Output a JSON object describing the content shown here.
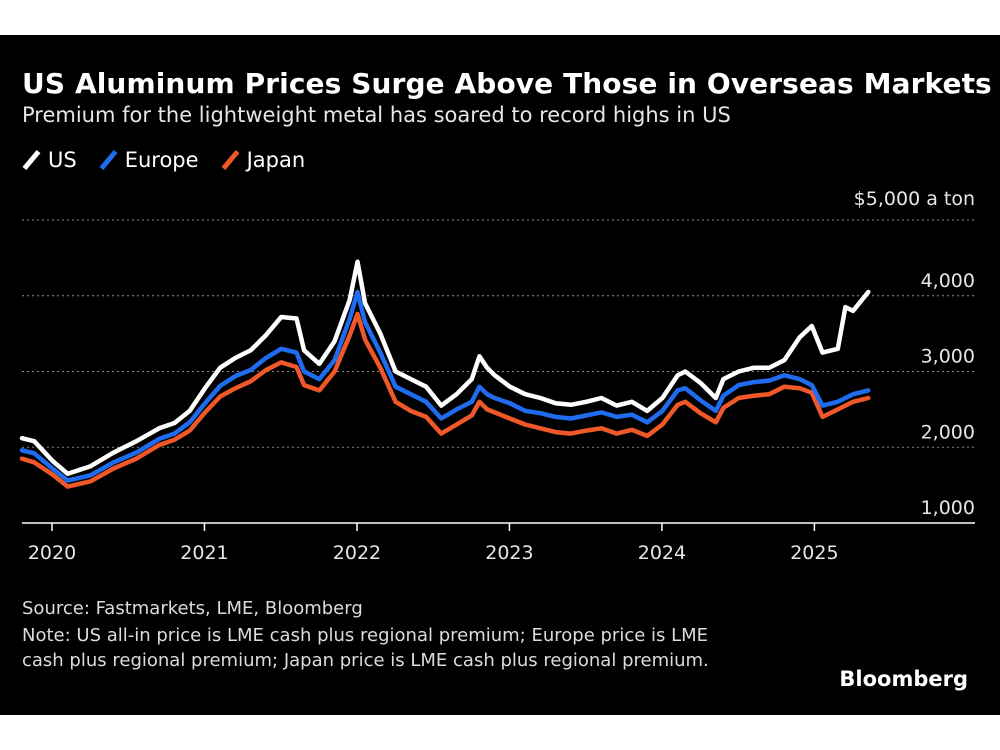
{
  "title": "US Aluminum Prices Surge Above Those in Overseas Markets",
  "subtitle": "Premium for the lightweight metal has soared to record highs in US",
  "legend": [
    {
      "label": "US",
      "color": "#ffffff"
    },
    {
      "label": "Europe",
      "color": "#1f6cf0"
    },
    {
      "label": "Japan",
      "color": "#f0582a"
    }
  ],
  "source": "Source: Fastmarkets, LME, Bloomberg",
  "note": "Note: US all-in price is LME cash plus regional premium; Europe price is LME cash plus regional premium; Japan price is LME cash plus regional premium.",
  "brand": "Bloomberg",
  "chart_data": {
    "type": "line",
    "unit_label": "$5,000 a ton",
    "ylim": [
      1000,
      5000
    ],
    "yticks": [
      1000,
      2000,
      3000,
      4000
    ],
    "ytick_labels": [
      "1,000",
      "2,000",
      "3,000",
      "4,000"
    ],
    "xlim": [
      2020.0,
      2026.25
    ],
    "xticks": [
      2020,
      2021,
      2022,
      2023,
      2024,
      2025
    ],
    "xtick_labels": [
      "2020",
      "2021",
      "2022",
      "2023",
      "2024",
      "2025"
    ],
    "grid": true,
    "legend_position": "top-left",
    "series": [
      {
        "name": "US",
        "color": "#ffffff",
        "x": [
          2020.0,
          2020.08,
          2020.2,
          2020.3,
          2020.45,
          2020.6,
          2020.75,
          2020.9,
          2021.0,
          2021.1,
          2021.2,
          2021.3,
          2021.4,
          2021.5,
          2021.6,
          2021.7,
          2021.8,
          2021.85,
          2021.95,
          2022.05,
          2022.15,
          2022.2,
          2022.25,
          2022.35,
          2022.45,
          2022.55,
          2022.65,
          2022.75,
          2022.85,
          2022.95,
          2023.0,
          2023.05,
          2023.1,
          2023.2,
          2023.3,
          2023.4,
          2023.5,
          2023.6,
          2023.7,
          2023.8,
          2023.9,
          2024.0,
          2024.1,
          2024.2,
          2024.3,
          2024.35,
          2024.45,
          2024.55,
          2024.6,
          2024.7,
          2024.8,
          2024.9,
          2025.0,
          2025.1,
          2025.18,
          2025.25,
          2025.35,
          2025.4,
          2025.45,
          2025.55
        ],
        "y": [
          2120,
          2080,
          1820,
          1650,
          1750,
          1930,
          2080,
          2250,
          2320,
          2480,
          2780,
          3050,
          3180,
          3280,
          3480,
          3720,
          3700,
          3280,
          3100,
          3400,
          3950,
          4450,
          3900,
          3500,
          3000,
          2900,
          2800,
          2550,
          2700,
          2900,
          3200,
          3050,
          2950,
          2800,
          2700,
          2650,
          2580,
          2560,
          2600,
          2650,
          2550,
          2600,
          2480,
          2650,
          2950,
          3000,
          2850,
          2650,
          2900,
          3000,
          3050,
          3050,
          3150,
          3450,
          3600,
          3250,
          3300,
          3850,
          3800,
          4050
        ]
      },
      {
        "name": "Europe",
        "color": "#1f6cf0",
        "x": [
          2020.0,
          2020.08,
          2020.2,
          2020.3,
          2020.45,
          2020.6,
          2020.75,
          2020.9,
          2021.0,
          2021.1,
          2021.2,
          2021.3,
          2021.4,
          2021.5,
          2021.6,
          2021.7,
          2021.8,
          2021.85,
          2021.95,
          2022.05,
          2022.15,
          2022.2,
          2022.25,
          2022.35,
          2022.45,
          2022.55,
          2022.65,
          2022.75,
          2022.85,
          2022.95,
          2023.0,
          2023.05,
          2023.1,
          2023.2,
          2023.3,
          2023.4,
          2023.5,
          2023.6,
          2023.7,
          2023.8,
          2023.9,
          2024.0,
          2024.1,
          2024.2,
          2024.3,
          2024.35,
          2024.45,
          2024.55,
          2024.6,
          2024.7,
          2024.8,
          2024.9,
          2025.0,
          2025.1,
          2025.18,
          2025.25,
          2025.35,
          2025.4,
          2025.45,
          2025.55
        ],
        "y": [
          1960,
          1920,
          1720,
          1560,
          1630,
          1800,
          1930,
          2110,
          2180,
          2330,
          2580,
          2810,
          2940,
          3020,
          3180,
          3300,
          3250,
          3000,
          2900,
          3150,
          3700,
          4050,
          3650,
          3250,
          2800,
          2700,
          2600,
          2380,
          2500,
          2600,
          2800,
          2700,
          2650,
          2580,
          2480,
          2450,
          2400,
          2380,
          2420,
          2460,
          2400,
          2430,
          2330,
          2480,
          2750,
          2780,
          2620,
          2480,
          2680,
          2820,
          2860,
          2880,
          2950,
          2900,
          2820,
          2550,
          2600,
          2650,
          2700,
          2750
        ]
      },
      {
        "name": "Japan",
        "color": "#f0582a",
        "x": [
          2020.0,
          2020.08,
          2020.2,
          2020.3,
          2020.45,
          2020.6,
          2020.75,
          2020.9,
          2021.0,
          2021.1,
          2021.2,
          2021.3,
          2021.4,
          2021.5,
          2021.6,
          2021.7,
          2021.8,
          2021.85,
          2021.95,
          2022.05,
          2022.15,
          2022.2,
          2022.25,
          2022.35,
          2022.45,
          2022.55,
          2022.65,
          2022.75,
          2022.85,
          2022.95,
          2023.0,
          2023.05,
          2023.1,
          2023.2,
          2023.3,
          2023.4,
          2023.5,
          2023.6,
          2023.7,
          2023.8,
          2023.9,
          2024.0,
          2024.1,
          2024.2,
          2024.3,
          2024.35,
          2024.45,
          2024.55,
          2024.6,
          2024.7,
          2024.8,
          2024.9,
          2025.0,
          2025.1,
          2025.18,
          2025.25,
          2025.35,
          2025.4,
          2025.45,
          2025.55
        ],
        "y": [
          1850,
          1800,
          1640,
          1480,
          1550,
          1720,
          1850,
          2030,
          2100,
          2220,
          2460,
          2670,
          2780,
          2870,
          3020,
          3120,
          3060,
          2820,
          2750,
          3000,
          3480,
          3760,
          3420,
          3050,
          2600,
          2480,
          2400,
          2180,
          2300,
          2420,
          2600,
          2500,
          2460,
          2380,
          2300,
          2250,
          2200,
          2180,
          2220,
          2250,
          2180,
          2230,
          2150,
          2300,
          2560,
          2600,
          2450,
          2330,
          2520,
          2650,
          2680,
          2700,
          2800,
          2780,
          2720,
          2400,
          2500,
          2550,
          2600,
          2650
        ]
      }
    ]
  }
}
